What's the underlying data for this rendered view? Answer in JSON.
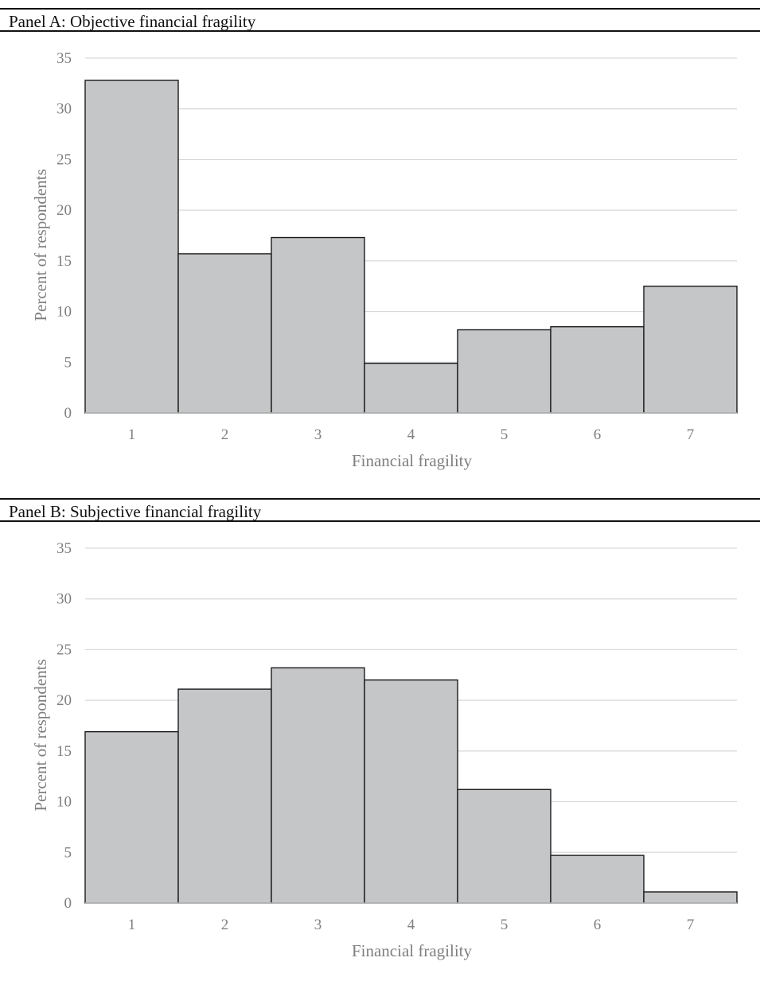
{
  "panels": [
    {
      "title": "Panel A: Objective financial fragility",
      "chart_data": {
        "type": "bar",
        "categories": [
          "1",
          "2",
          "3",
          "4",
          "5",
          "6",
          "7"
        ],
        "values": [
          32.8,
          15.7,
          17.3,
          4.9,
          8.2,
          8.5,
          12.5
        ],
        "title": "",
        "xlabel": "Financial fragility",
        "ylabel": "Percent of respondents",
        "ylim": [
          0,
          35
        ],
        "yticks": [
          "0",
          "5",
          "10",
          "15",
          "20",
          "25",
          "30",
          "35"
        ],
        "grid": true,
        "bar_color": "#c5c6c8",
        "bar_edge_color": "#1a1a1a",
        "grid_color": "#d9d9d9"
      }
    },
    {
      "title": "Panel B: Subjective financial fragility",
      "chart_data": {
        "type": "bar",
        "categories": [
          "1",
          "2",
          "3",
          "4",
          "5",
          "6",
          "7"
        ],
        "values": [
          16.9,
          21.1,
          23.2,
          22.0,
          11.2,
          4.7,
          1.1
        ],
        "title": "",
        "xlabel": "Financial fragility",
        "ylabel": "Percent of respondents",
        "ylim": [
          0,
          35
        ],
        "yticks": [
          "0",
          "5",
          "10",
          "15",
          "20",
          "25",
          "30",
          "35"
        ],
        "grid": true,
        "bar_color": "#c5c6c8",
        "bar_edge_color": "#1a1a1a",
        "grid_color": "#d9d9d9"
      }
    }
  ]
}
